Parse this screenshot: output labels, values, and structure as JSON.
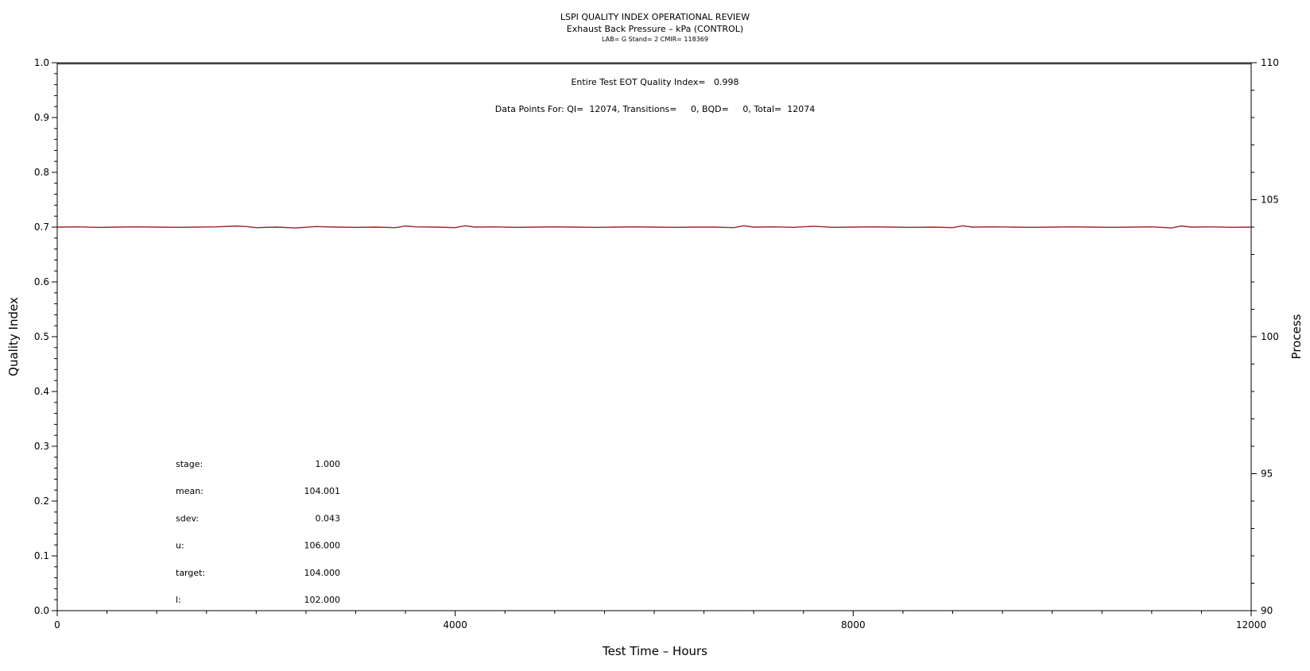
{
  "chart_data": {
    "type": "line",
    "title": "LSPI QUALITY INDEX OPERATIONAL REVIEW",
    "subtitle": "Exhaust Back Pressure – kPa (CONTROL)",
    "subsubtitle": "LAB= G Stand= 2 CMIR= 118369",
    "annotations": [
      "Entire Test EOT Quality Index=   0.998",
      "Data Points For: QI=  12074, Transitions=     0, BQD=     0, Total=  12074"
    ],
    "xlabel": "Test Time – Hours",
    "ylabel_left": "Quality Index",
    "ylabel_right": "Process",
    "xlim": [
      0,
      12000
    ],
    "ylim_left": [
      0.0,
      1.0
    ],
    "ylim_right": [
      90,
      110
    ],
    "x_tick_labels": [
      "0",
      "4000",
      "8000",
      "12000"
    ],
    "x_tick_values": [
      0,
      4000,
      8000,
      12000
    ],
    "y_left_tick_labels": [
      "0.0",
      "0.1",
      "0.2",
      "0.3",
      "0.4",
      "0.5",
      "0.6",
      "0.7",
      "0.8",
      "0.9",
      "1.0"
    ],
    "y_left_tick_values": [
      0.0,
      0.1,
      0.2,
      0.3,
      0.4,
      0.5,
      0.6,
      0.7,
      0.8,
      0.9,
      1.0
    ],
    "y_right_tick_labels": [
      "90",
      "95",
      "100",
      "105",
      "110"
    ],
    "y_right_tick_values": [
      90,
      95,
      100,
      105,
      110
    ],
    "grid": false,
    "series": [
      {
        "axis": "left",
        "color": "#000000",
        "x": [
          0,
          12000
        ],
        "y": [
          0.998,
          0.998
        ]
      },
      {
        "axis": "right",
        "color": "#a0202a",
        "mean": 104.001,
        "x": [
          0,
          200,
          400,
          600,
          800,
          1000,
          1200,
          1400,
          1600,
          1800,
          1900,
          2000,
          2200,
          2400,
          2600,
          2800,
          3000,
          3200,
          3400,
          3500,
          3600,
          3800,
          4000,
          4100,
          4200,
          4400,
          4600,
          4800,
          5000,
          5200,
          5400,
          5600,
          5800,
          6000,
          6200,
          6400,
          6600,
          6800,
          6900,
          7000,
          7200,
          7400,
          7600,
          7800,
          8000,
          8200,
          8400,
          8600,
          8800,
          9000,
          9100,
          9200,
          9400,
          9600,
          9800,
          10000,
          10200,
          10400,
          10600,
          10800,
          11000,
          11200,
          11300,
          11400,
          11600,
          11800,
          12000
        ],
        "y": [
          104.0,
          104.01,
          103.99,
          104.0,
          104.01,
          104.0,
          103.99,
          104.0,
          104.01,
          104.04,
          104.02,
          103.98,
          104.0,
          103.97,
          104.02,
          104.0,
          103.99,
          104.0,
          103.98,
          104.04,
          104.01,
          104.0,
          103.98,
          104.05,
          104.0,
          104.01,
          103.99,
          104.0,
          104.01,
          104.0,
          103.99,
          104.0,
          104.01,
          104.0,
          103.99,
          104.0,
          104.0,
          103.98,
          104.05,
          104.0,
          104.01,
          103.99,
          104.03,
          103.99,
          104.0,
          104.01,
          104.0,
          103.99,
          104.0,
          103.98,
          104.05,
          104.0,
          104.01,
          104.0,
          103.99,
          104.0,
          104.01,
          104.0,
          103.99,
          104.0,
          104.01,
          103.97,
          104.04,
          104.0,
          104.01,
          103.99,
          104.0
        ]
      }
    ],
    "stats": [
      {
        "label": "stage:",
        "value": "1.000"
      },
      {
        "label": "mean:",
        "value": "104.001"
      },
      {
        "label": "sdev:",
        "value": "0.043"
      },
      {
        "label": "u:",
        "value": "106.000"
      },
      {
        "label": "target:",
        "value": "104.000"
      },
      {
        "label": "l:",
        "value": "102.000"
      }
    ]
  }
}
